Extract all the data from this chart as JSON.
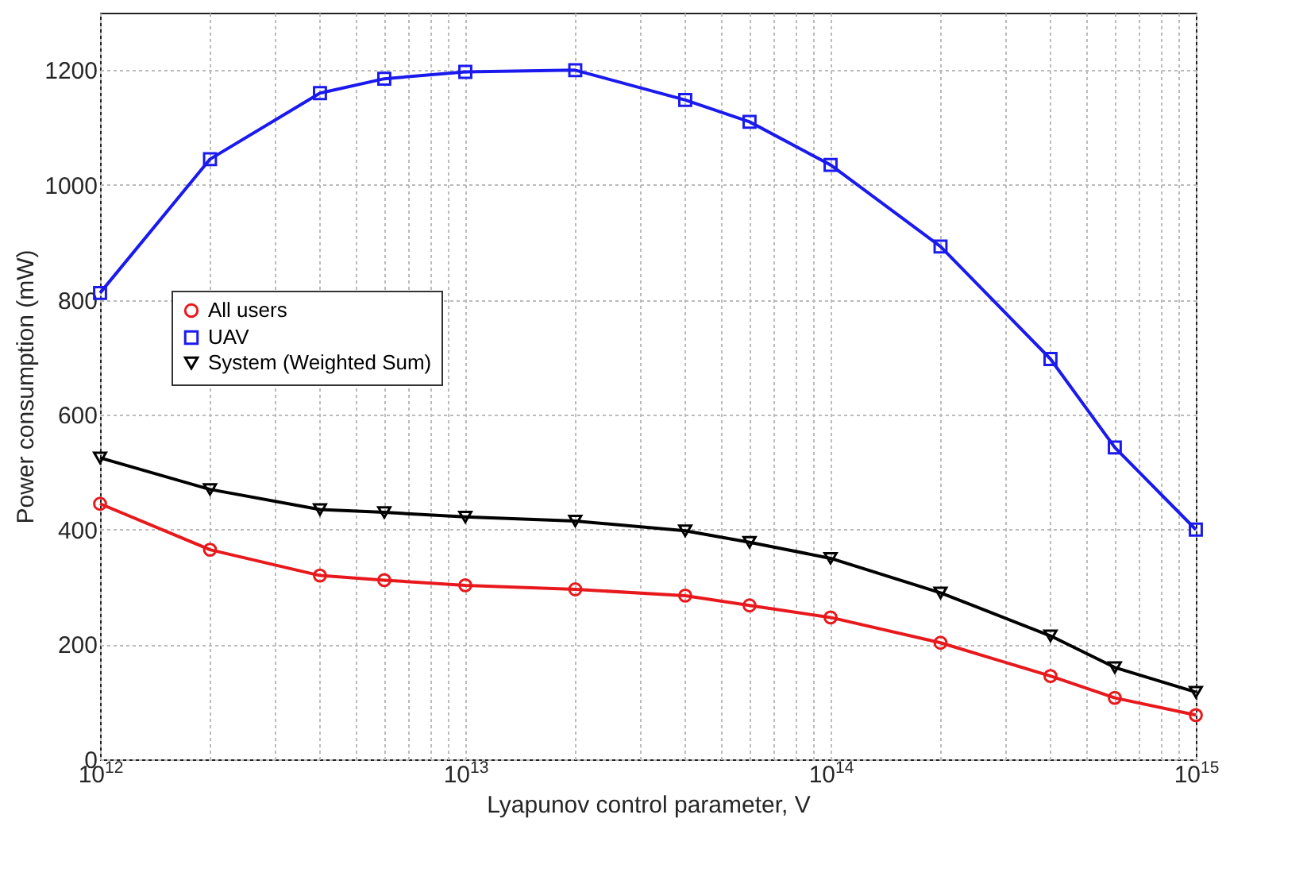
{
  "chart_data": {
    "type": "line",
    "xlabel": "Lyapunov control parameter, V",
    "ylabel": "Power consumption (mW)",
    "log": "x",
    "grid": true,
    "legend": "left",
    "line_style": "solid",
    "xlim": [
      1000000000000.0,
      1000000000000000.0
    ],
    "ylim": [
      0,
      1300
    ],
    "xticks": [
      {
        "value": 1000000000000.0,
        "label": "10$^{12}$"
      },
      {
        "value": 2000000000000.0,
        "label": null
      },
      {
        "value": 3000000000000.0,
        "label": null
      },
      {
        "value": 4000000000000.0,
        "label": null
      },
      {
        "value": 5000000000000.0,
        "label": null
      },
      {
        "value": 6000000000000.0,
        "label": null
      },
      {
        "value": 7000000000000.0,
        "label": null
      },
      {
        "value": 8000000000000.0,
        "label": null
      },
      {
        "value": 9000000000000.0,
        "label": null
      },
      {
        "value": 10000000000000.0,
        "label": "10$^{13}$"
      },
      {
        "value": 20000000000000.0,
        "label": null
      },
      {
        "value": 30000000000000.0,
        "label": null
      },
      {
        "value": 40000000000000.0,
        "label": null
      },
      {
        "value": 50000000000000.0,
        "label": null
      },
      {
        "value": 60000000000000.0,
        "label": null
      },
      {
        "value": 70000000000000.0,
        "label": null
      },
      {
        "value": 80000000000000.0,
        "label": null
      },
      {
        "value": 90000000000000.0,
        "label": null
      },
      {
        "value": 100000000000000.0,
        "label": "10$^{14}$"
      },
      {
        "value": 200000000000000.0,
        "label": null
      },
      {
        "value": 300000000000000.0,
        "label": null
      },
      {
        "value": 400000000000000.0,
        "label": null
      },
      {
        "value": 500000000000000.0,
        "label": null
      },
      {
        "value": 600000000000000.0,
        "label": null
      },
      {
        "value": 700000000000000.0,
        "label": null
      },
      {
        "value": 800000000000000.0,
        "label": null
      },
      {
        "value": 900000000000000.0,
        "label": null
      },
      {
        "value": 1000000000000000.0,
        "label": "10$^{15}$"
      }
    ],
    "yticks": [
      0,
      200,
      400,
      600,
      800,
      1000,
      1200
    ],
    "x": [
      1000000000000.0,
      2000000000000.0,
      4000000000000.0,
      6000000000000.0,
      10000000000000.0,
      20000000000000.0,
      40000000000000.0,
      60000000000000.0,
      100000000000000.0,
      200000000000000.0,
      400000000000000.0,
      600000000000000.0,
      1000000000000000.0
    ],
    "series": [
      {
        "name": "All users",
        "color": "#e8191c",
        "marker": "circle",
        "values": [
          445,
          365,
          320,
          312,
          303,
          296,
          285,
          268,
          247,
          203,
          145,
          107,
          77
        ]
      },
      {
        "name": "UAV",
        "color": "#1a1aee",
        "marker": "square",
        "values": [
          812,
          1045,
          1160,
          1185,
          1197,
          1200,
          1148,
          1110,
          1035,
          893,
          697,
          543,
          400
        ]
      },
      {
        "name": "System (Weighted Sum)",
        "color": "#000000",
        "marker": "triangle",
        "values": [
          525,
          470,
          435,
          430,
          422,
          415,
          398,
          378,
          350,
          290,
          215,
          160,
          117
        ]
      }
    ]
  }
}
